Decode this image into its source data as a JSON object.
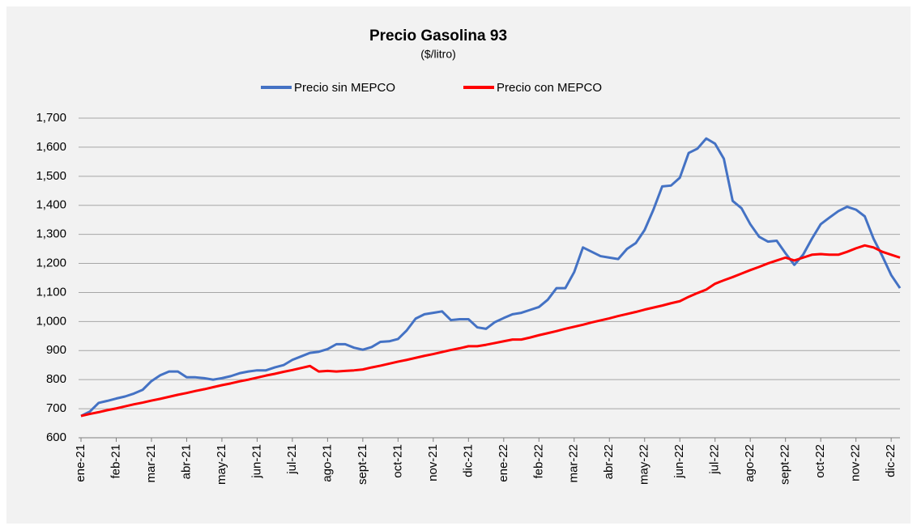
{
  "chart_data": {
    "type": "line",
    "title": "Precio Gasolina 93",
    "subtitle": "($/litro)",
    "categories": [
      "ene-21",
      null,
      null,
      null,
      "feb-21",
      null,
      null,
      null,
      "mar-21",
      null,
      null,
      null,
      "abr-21",
      null,
      null,
      null,
      "may-21",
      null,
      null,
      null,
      "jun-21",
      null,
      null,
      null,
      "jul-21",
      null,
      null,
      null,
      "ago-21",
      null,
      null,
      null,
      "sept-21",
      null,
      null,
      null,
      "oct-21",
      null,
      null,
      null,
      "nov-21",
      null,
      null,
      null,
      "dic-21",
      null,
      null,
      null,
      "ene-22",
      null,
      null,
      null,
      "feb-22",
      null,
      null,
      null,
      "mar-22",
      null,
      null,
      null,
      "abr-22",
      null,
      null,
      null,
      "may-22",
      null,
      null,
      null,
      "jun-22",
      null,
      null,
      null,
      "jul-22",
      null,
      null,
      null,
      "ago-22",
      null,
      null,
      null,
      "sept-22",
      null,
      null,
      null,
      "oct-22",
      null,
      null,
      null,
      "nov-22",
      null,
      null,
      null,
      "dic-22",
      null
    ],
    "series": [
      {
        "name": "Precio sin MEPCO",
        "color": "#4472c4",
        "values": [
          675,
          690,
          720,
          727,
          735,
          742,
          752,
          765,
          795,
          815,
          828,
          828,
          808,
          808,
          805,
          800,
          805,
          812,
          822,
          828,
          832,
          832,
          842,
          850,
          868,
          880,
          892,
          896,
          905,
          922,
          922,
          910,
          903,
          912,
          930,
          932,
          940,
          970,
          1010,
          1025,
          1030,
          1035,
          1005,
          1008,
          1008,
          980,
          975,
          998,
          1012,
          1025,
          1030,
          1040,
          1050,
          1075,
          1115,
          1115,
          1170,
          1255,
          1240,
          1225,
          1220,
          1215,
          1250,
          1270,
          1315,
          1385,
          1465,
          1468,
          1495,
          1580,
          1595,
          1630,
          1612,
          1560,
          1415,
          1390,
          1335,
          1292,
          1275,
          1278,
          1235,
          1195,
          1230,
          1285,
          1335,
          1358,
          1380,
          1395,
          1385,
          1362,
          1285,
          1225,
          1160,
          1115
        ]
      },
      {
        "name": "Precio con MEPCO",
        "color": "#ff0000",
        "values": [
          675,
          682,
          688,
          695,
          701,
          708,
          715,
          721,
          728,
          734,
          741,
          748,
          754,
          761,
          767,
          774,
          781,
          787,
          794,
          800,
          807,
          814,
          820,
          827,
          833,
          840,
          847,
          828,
          830,
          828,
          830,
          832,
          835,
          842,
          848,
          855,
          862,
          868,
          875,
          882,
          888,
          895,
          902,
          908,
          915,
          915,
          920,
          926,
          932,
          938,
          938,
          945,
          953,
          960,
          967,
          975,
          982,
          989,
          997,
          1004,
          1011,
          1019,
          1026,
          1033,
          1041,
          1048,
          1055,
          1063,
          1070,
          1085,
          1098,
          1110,
          1130,
          1142,
          1153,
          1165,
          1177,
          1188,
          1200,
          1210,
          1220,
          1210,
          1220,
          1230,
          1232,
          1230,
          1230,
          1240,
          1252,
          1262,
          1255,
          1240,
          1230,
          1220
        ]
      }
    ],
    "ylim": [
      600,
      1700
    ],
    "yticks": [
      600,
      700,
      800,
      900,
      {
        "value": 1000,
        "label": "1,000"
      },
      {
        "value": 1100,
        "label": "1,100"
      },
      {
        "value": 1200,
        "label": "1,200"
      },
      {
        "value": 1300,
        "label": "1,300"
      },
      {
        "value": 1400,
        "label": "1,400"
      },
      {
        "value": 1500,
        "label": "1,500"
      },
      {
        "value": 1600,
        "label": "1,600"
      },
      {
        "value": 1700,
        "label": "1,700"
      }
    ],
    "grid": true,
    "legend": "top"
  }
}
